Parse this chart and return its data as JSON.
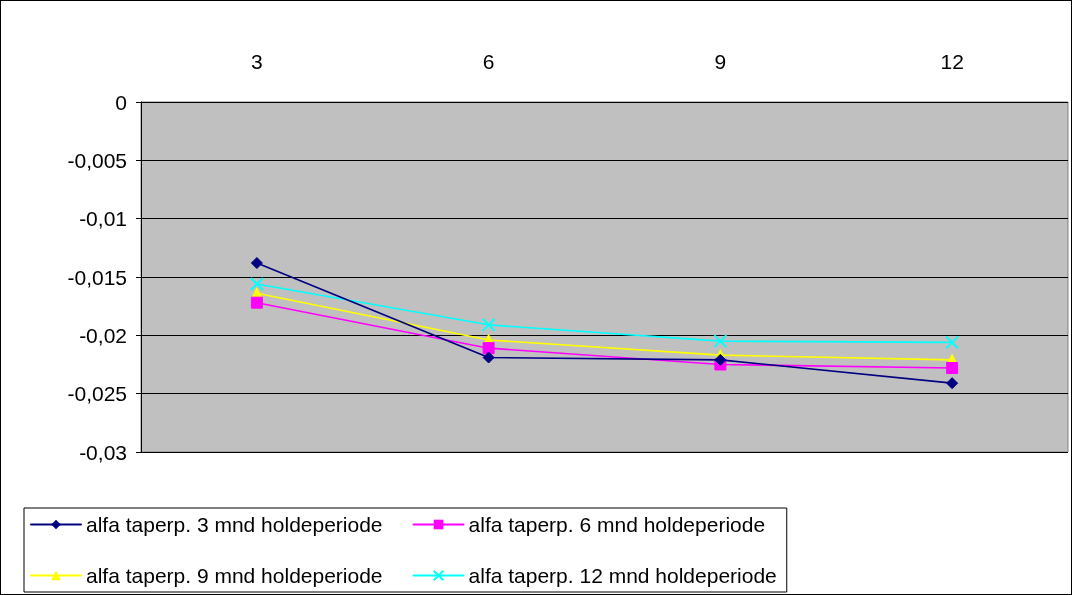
{
  "chart_data": {
    "type": "line",
    "categories": [
      "3",
      "6",
      "9",
      "12"
    ],
    "series": [
      {
        "name": "alfa taperp. 3 mnd holdeperiode",
        "color": "#000080",
        "marker": "diamond",
        "values": [
          -0.0138,
          -0.0219,
          -0.0221,
          -0.0241
        ]
      },
      {
        "name": "alfa taperp. 6 mnd holdeperiode",
        "color": "#ff00ff",
        "marker": "square",
        "values": [
          -0.0172,
          -0.0211,
          -0.0225,
          -0.0228
        ]
      },
      {
        "name": "alfa taperp. 9 mnd holdeperiode",
        "color": "#ffff00",
        "marker": "triangle",
        "values": [
          -0.0164,
          -0.0204,
          -0.0217,
          -0.0221
        ]
      },
      {
        "name": "alfa taperp. 12 mnd holdeperiode",
        "color": "#00ffff",
        "marker": "cross",
        "values": [
          -0.0156,
          -0.0191,
          -0.0205,
          -0.0206
        ]
      }
    ],
    "ylim": [
      -0.03,
      0
    ],
    "yticks": [
      {
        "value": -0.03,
        "label": "-0,03"
      },
      {
        "value": -0.025,
        "label": "-0,025"
      },
      {
        "value": -0.02,
        "label": "-0,02"
      },
      {
        "value": -0.015,
        "label": "-0,015"
      },
      {
        "value": -0.01,
        "label": "-0,01"
      },
      {
        "value": -0.005,
        "label": "-0,005"
      },
      {
        "value": 0,
        "label": "0"
      }
    ],
    "grid": "y",
    "legend": "bottom",
    "line_style": "solid"
  }
}
